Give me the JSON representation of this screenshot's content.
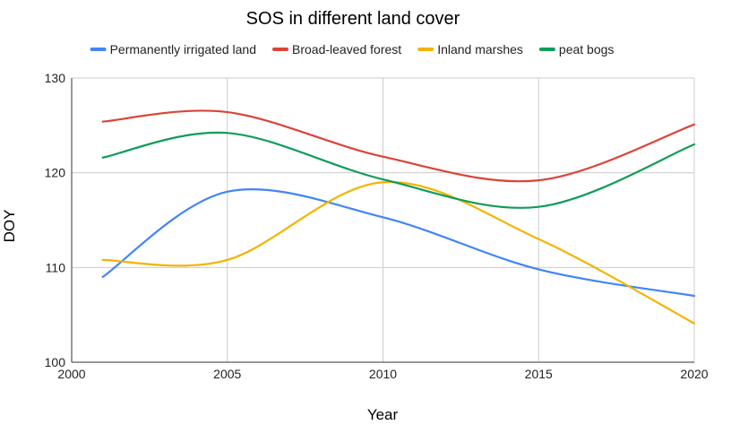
{
  "chart_data": {
    "type": "line",
    "title": "SOS in different land cover",
    "xlabel": "Year",
    "ylabel": "DOY",
    "xlim": [
      2000,
      2020
    ],
    "ylim": [
      100,
      130
    ],
    "x_ticks": [
      "2000",
      "2005",
      "2010",
      "2015",
      "2020"
    ],
    "y_ticks": [
      "100",
      "110",
      "120",
      "130"
    ],
    "x": [
      2001,
      2005,
      2010,
      2015,
      2020
    ],
    "grid": true,
    "smooth": true,
    "legend_position": "top",
    "series": [
      {
        "name": "Permanently irrigated land",
        "color": "#4285F4",
        "values": [
          109.0,
          118.0,
          115.3,
          109.8,
          107.0
        ]
      },
      {
        "name": "Broad-leaved forest",
        "color": "#DB4437",
        "values": [
          125.4,
          126.4,
          121.7,
          119.2,
          125.1
        ]
      },
      {
        "name": "Inland marshes",
        "color": "#F4B400",
        "values": [
          110.8,
          110.8,
          119.0,
          113.0,
          104.1
        ]
      },
      {
        "name": "peat bogs",
        "color": "#0F9D58",
        "values": [
          121.6,
          124.2,
          119.3,
          116.4,
          123.0
        ]
      }
    ]
  }
}
